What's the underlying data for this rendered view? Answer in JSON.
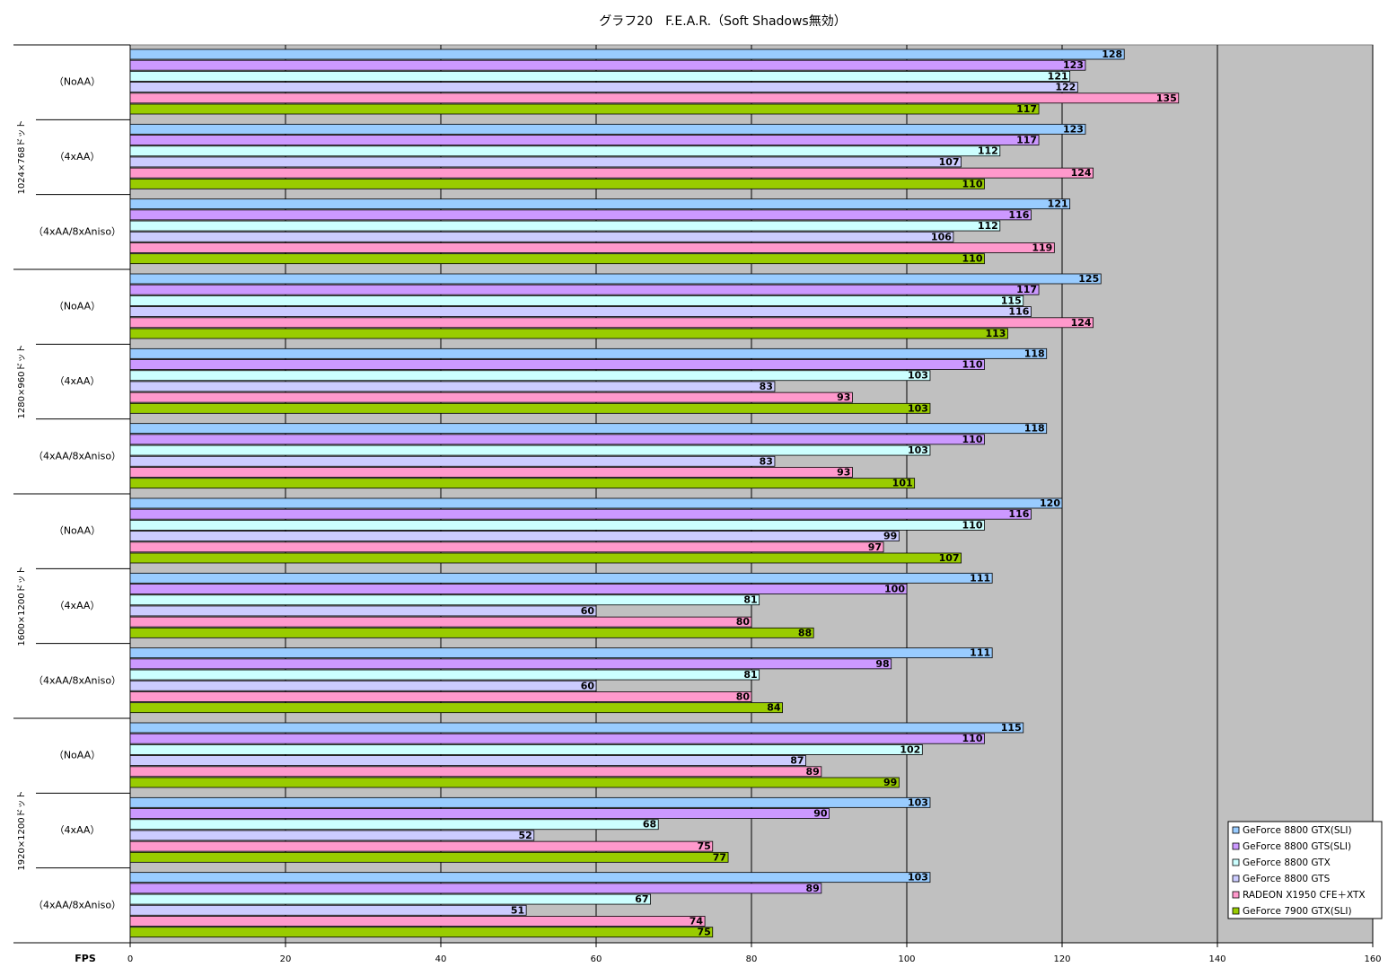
{
  "chart_data": {
    "type": "bar",
    "orientation": "horizontal",
    "title": "グラフ20　F.E.A.R.（Soft Shadows無効）",
    "x_label": "FPS",
    "category_groups": [
      "1024×768ドット",
      "1280×960ドット",
      "1600×1200ドット",
      "1920×1200ドット"
    ],
    "categories": [
      "（NoAA）",
      "（4xAA）",
      "（4xAA/8xAniso）",
      "（NoAA）",
      "（4xAA）",
      "（4xAA/8xAniso）",
      "（NoAA）",
      "（4xAA）",
      "（4xAA/8xAniso）",
      "（NoAA）",
      "（4xAA）",
      "（4xAA/8xAniso）"
    ],
    "series": [
      {
        "name": "GeForce 8800 GTX(SLI)",
        "color": "#99ccff",
        "values": [
          128,
          123,
          121,
          125,
          118,
          118,
          120,
          111,
          111,
          115,
          103,
          103
        ]
      },
      {
        "name": "GeForce 8800 GTS(SLI)",
        "color": "#cc99ff",
        "values": [
          123,
          117,
          116,
          117,
          110,
          110,
          116,
          100,
          98,
          110,
          90,
          89
        ]
      },
      {
        "name": "GeForce 8800 GTX",
        "color": "#ccffff",
        "values": [
          121,
          112,
          112,
          115,
          103,
          103,
          110,
          81,
          81,
          102,
          68,
          67
        ]
      },
      {
        "name": "GeForce 8800 GTS",
        "color": "#ccccff",
        "values": [
          122,
          107,
          106,
          116,
          83,
          83,
          99,
          60,
          60,
          87,
          52,
          51
        ]
      },
      {
        "name": "RADEON X1950 CFE＋XTX",
        "color": "#ff99cc",
        "values": [
          135,
          124,
          119,
          124,
          93,
          93,
          97,
          80,
          80,
          89,
          75,
          74
        ]
      },
      {
        "name": "GeForce 7900 GTX(SLI)",
        "color": "#99cc00",
        "values": [
          117,
          110,
          110,
          113,
          103,
          101,
          107,
          88,
          84,
          99,
          77,
          75
        ]
      }
    ],
    "xlim": [
      0,
      160
    ],
    "xticks": [
      0,
      20,
      40,
      60,
      80,
      100,
      120,
      140,
      160
    ],
    "grid": true,
    "background": "#c0c0c0",
    "legend": "lower right"
  }
}
